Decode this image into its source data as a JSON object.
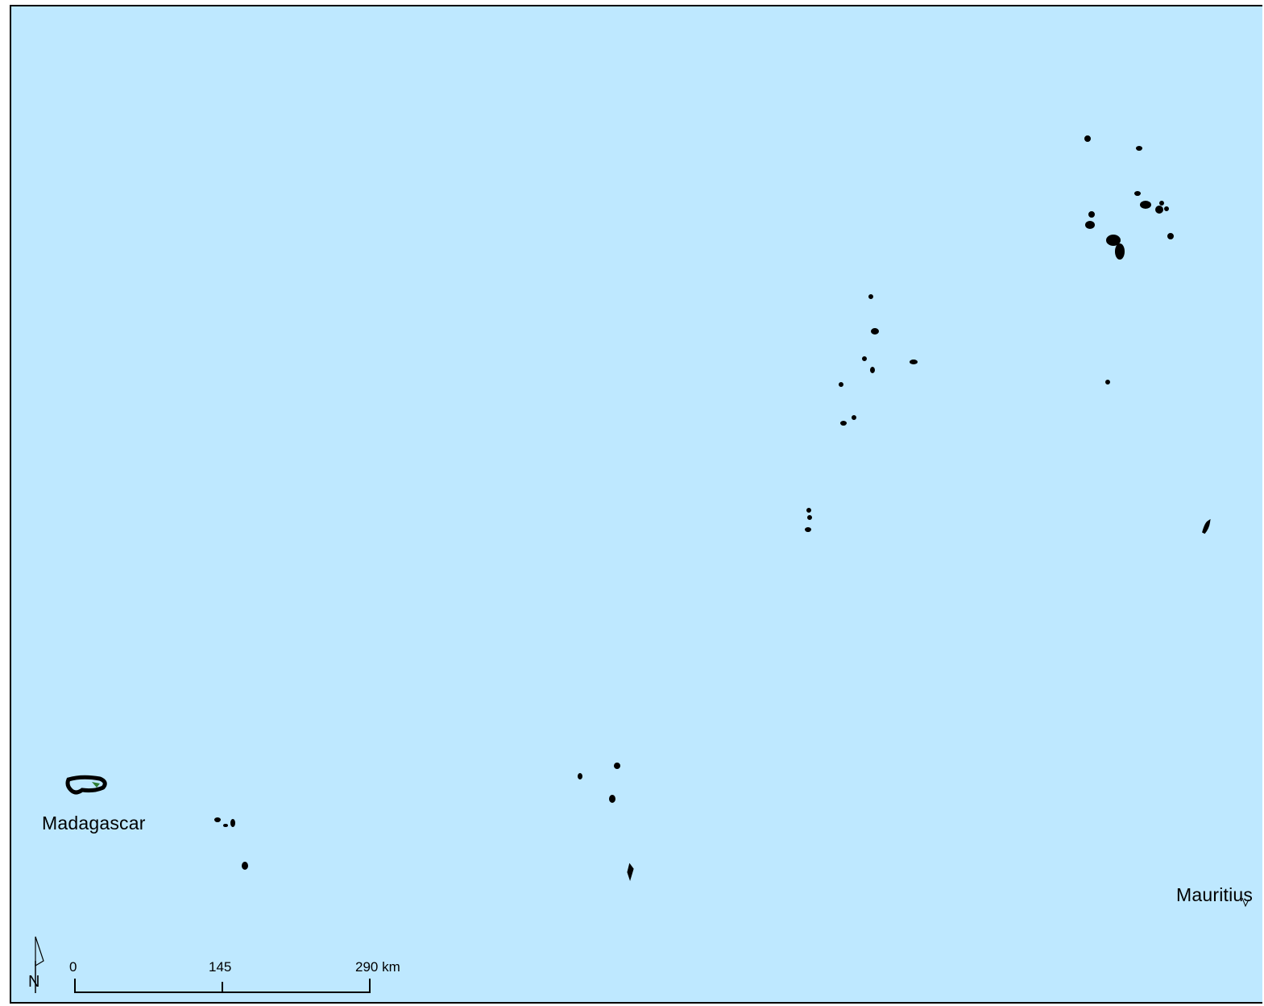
{
  "map": {
    "background_color": "#bee8ff",
    "land_outline_color": "#000000",
    "labels": {
      "madagascar": "Madagascar",
      "mauritius": "Mauritius"
    },
    "north_arrow": {
      "letter": "N",
      "icon": "north-arrow-icon"
    },
    "scale_bar": {
      "tick_0": "0",
      "tick_1": "145",
      "tick_2": "290 km"
    }
  }
}
